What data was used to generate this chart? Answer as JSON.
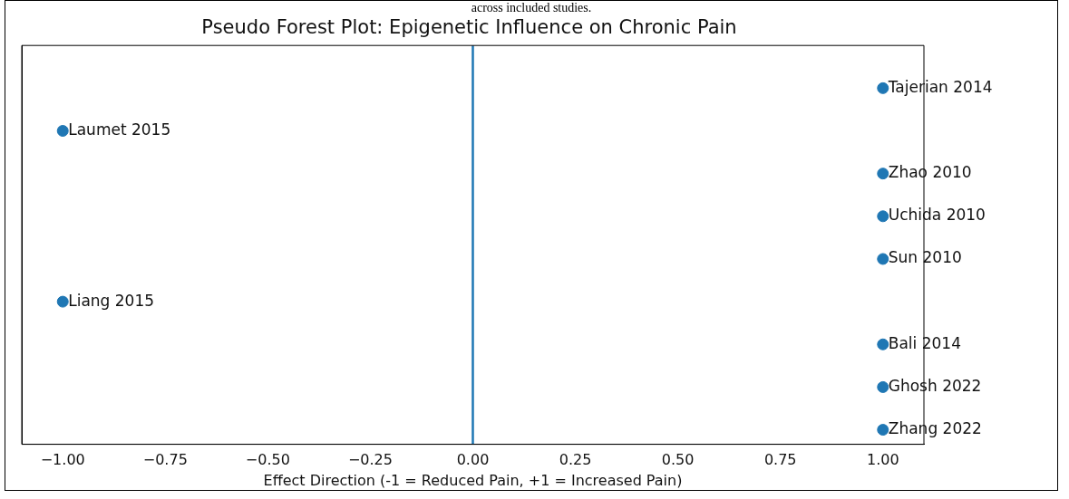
{
  "chart_data": {
    "type": "scatter",
    "orientation": "horizontal",
    "title": "Pseudo Forest Plot: Epigenetic Influence on Chronic Pain",
    "xlabel": "Effect Direction (-1 = Reduced Pain, +1 = Increased Pain)",
    "annotations": [
      "across included studies."
    ],
    "categories": [
      "Tajerian 2014",
      "Laumet 2015",
      "Zhao 2010",
      "Uchida 2010",
      "Sun 2010",
      "Liang 2015",
      "Bali 2014",
      "Ghosh 2022",
      "Zhang 2022"
    ],
    "values": [
      1,
      -1,
      1,
      1,
      1,
      -1,
      1,
      1,
      1
    ],
    "color": "#1f77b4",
    "marker": "circle",
    "xlim": [
      -1.1,
      1.1
    ],
    "xticks": [
      {
        "value": -1,
        "label": "−1.00"
      },
      {
        "value": -0.75,
        "label": "−0.75"
      },
      {
        "value": -0.5,
        "label": "−0.50"
      },
      {
        "value": -0.25,
        "label": "−0.25"
      },
      {
        "value": 0,
        "label": "0.00"
      },
      {
        "value": 0.25,
        "label": "0.25"
      },
      {
        "value": 0.5,
        "label": "0.50"
      },
      {
        "value": 0.75,
        "label": "0.75"
      },
      {
        "value": 1,
        "label": "1.00"
      }
    ],
    "ref_lines": [
      {
        "axis": "x",
        "value": 0,
        "color": "#1f77b4",
        "line_style": "solid"
      }
    ],
    "tick_labels": "x",
    "grid": false,
    "legend": false
  }
}
